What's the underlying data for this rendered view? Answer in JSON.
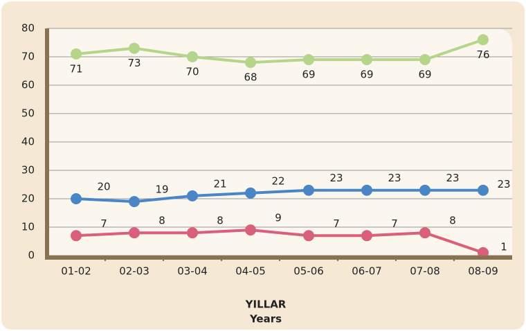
{
  "chart_data": {
    "type": "line",
    "x_label": [
      "YILLAR",
      "Years"
    ],
    "categories": [
      "01-02",
      "02-03",
      "03-04",
      "04-05",
      "05-06",
      "06-07",
      "07-08",
      "08-09"
    ],
    "series": [
      {
        "color": "#b5d68a",
        "values": [
          71,
          73,
          70,
          68,
          69,
          69,
          69,
          76
        ],
        "label_side": "below"
      },
      {
        "color": "#4a86c6",
        "values": [
          20,
          19,
          21,
          22,
          23,
          23,
          23,
          23
        ],
        "label_side": "above"
      },
      {
        "color": "#d95f7b",
        "values": [
          7,
          8,
          8,
          9,
          7,
          7,
          8,
          1
        ],
        "label_side": "above"
      }
    ],
    "ylim": [
      0,
      80
    ],
    "yticks": [
      0,
      10,
      20,
      30,
      40,
      50,
      60,
      70,
      80
    ],
    "grid": true
  }
}
